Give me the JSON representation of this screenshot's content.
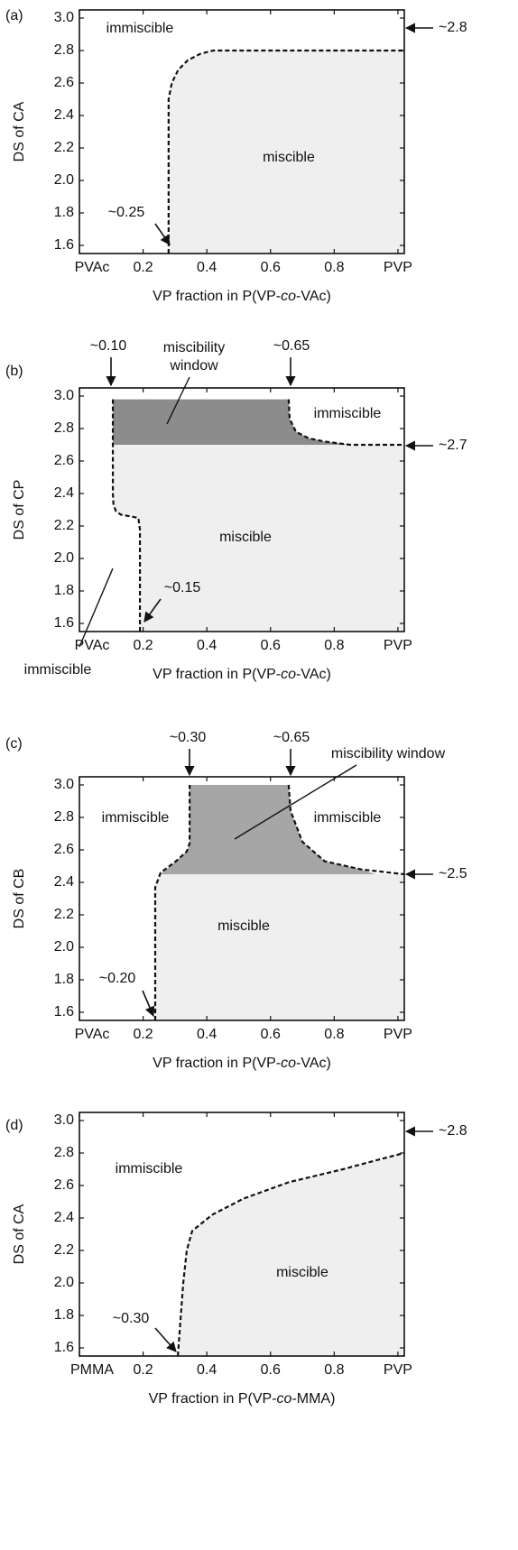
{
  "chart_data": [
    {
      "type": "area",
      "panel": "(a)",
      "ylabel": "DS of CA",
      "xlabel": [
        "VP fraction in P(VP-",
        "co",
        "-VAc)"
      ],
      "xlim": [
        0,
        1.02
      ],
      "ylim": [
        1.55,
        3.05
      ],
      "xticks": [
        {
          "value": 0,
          "label": "PVAc"
        },
        0.2,
        0.4,
        0.6,
        0.8,
        {
          "value": 1,
          "label": "PVP"
        }
      ],
      "yticks": [
        1.6,
        1.8,
        {
          "value": 2,
          "label": "2.0"
        },
        2.2,
        2.4,
        2.6,
        2.8,
        {
          "value": 3,
          "label": "3.0"
        }
      ],
      "regions": [
        {
          "color": "#efefef",
          "x": [
            0.28,
            0.28,
            0.29,
            0.31,
            0.34,
            0.38,
            0.42,
            1.02,
            1.02
          ],
          "y": [
            1.55,
            2.5,
            2.6,
            2.68,
            2.74,
            2.78,
            2.8,
            2.8,
            1.55
          ]
        }
      ],
      "boundaries": [
        {
          "x": [
            0.28,
            0.28,
            0.29,
            0.31,
            0.34,
            0.38,
            0.42,
            1.02
          ],
          "y": [
            1.55,
            2.5,
            2.6,
            2.68,
            2.74,
            2.78,
            2.8,
            2.8
          ]
        }
      ],
      "labels": [
        "immiscible",
        "miscible"
      ],
      "annotations": [
        "~0.25",
        "~2.8"
      ]
    },
    {
      "type": "area",
      "panel": "(b)",
      "ylabel": "DS of CP",
      "xlabel": [
        "VP fraction in P(VP-",
        "co",
        "-VAc)"
      ],
      "xlim": [
        0,
        1.02
      ],
      "ylim": [
        1.55,
        3.05
      ],
      "xticks": [
        {
          "value": 0,
          "label": "PVAc"
        },
        0.2,
        0.4,
        0.6,
        0.8,
        {
          "value": 1,
          "label": "PVP"
        }
      ],
      "yticks": [
        1.6,
        1.8,
        {
          "value": 2,
          "label": "2.0"
        },
        2.2,
        2.4,
        2.6,
        2.8,
        {
          "value": 3,
          "label": "3.0"
        }
      ],
      "regions": [
        {
          "color": "#efefef",
          "x": [
            0.105,
            0.105,
            0.107,
            0.115,
            0.13,
            0.185,
            0.19,
            0.19,
            1.02,
            1.02
          ],
          "y": [
            2.7,
            2.4,
            2.33,
            2.29,
            2.27,
            2.25,
            2.18,
            1.55,
            1.55,
            2.7
          ]
        },
        {
          "color": "#8c8c8c",
          "x": [
            0.105,
            0.105,
            0.657,
            0.66,
            0.68,
            0.72,
            0.77,
            0.85
          ],
          "y": [
            2.7,
            2.98,
            2.98,
            2.86,
            2.78,
            2.74,
            2.72,
            2.7
          ]
        }
      ],
      "boundaries": [
        {
          "x": [
            0.105,
            0.105,
            0.107,
            0.115,
            0.13,
            0.185,
            0.19,
            0.19
          ],
          "y": [
            2.98,
            2.4,
            2.33,
            2.29,
            2.27,
            2.25,
            2.18,
            1.55
          ]
        },
        {
          "x": [
            0.657,
            0.66,
            0.68,
            0.72,
            0.77,
            0.85,
            1.02
          ],
          "y": [
            2.98,
            2.86,
            2.78,
            2.74,
            2.72,
            2.7,
            2.7
          ]
        }
      ],
      "labels": [
        "miscibility",
        "window",
        "immiscible",
        "miscible",
        "immiscible"
      ],
      "annotations": [
        "~0.10",
        "~0.65",
        "~2.7",
        "~0.15"
      ]
    },
    {
      "type": "area",
      "panel": "(c)",
      "ylabel": "DS of CB",
      "xlabel": [
        "VP fraction in P(VP-",
        "co",
        "-VAc)"
      ],
      "xlim": [
        0,
        1.02
      ],
      "ylim": [
        1.55,
        3.05
      ],
      "xticks": [
        {
          "value": 0,
          "label": "PVAc"
        },
        0.2,
        0.4,
        0.6,
        0.8,
        {
          "value": 1,
          "label": "PVP"
        }
      ],
      "yticks": [
        1.6,
        1.8,
        {
          "value": 2,
          "label": "2.0"
        },
        2.2,
        2.4,
        2.6,
        2.8,
        {
          "value": 3,
          "label": "3.0"
        }
      ],
      "regions": [
        {
          "color": "#efefef",
          "x": [
            0.254,
            0.238,
            0.238,
            1.02,
            1.02
          ],
          "y": [
            2.45,
            2.37,
            1.55,
            1.55,
            2.45
          ]
        },
        {
          "color": "#a6a6a6",
          "x": [
            0.254,
            0.303,
            0.337,
            0.346,
            0.346,
            0.657,
            0.663,
            0.7,
            0.77,
            0.884,
            0.93
          ],
          "y": [
            2.45,
            2.53,
            2.59,
            2.64,
            3.0,
            3.0,
            2.84,
            2.65,
            2.53,
            2.48,
            2.45
          ]
        }
      ],
      "boundaries": [
        {
          "x": [
            0.238,
            0.238,
            0.255,
            0.303,
            0.337,
            0.346,
            0.346
          ],
          "y": [
            1.55,
            2.37,
            2.46,
            2.53,
            2.59,
            2.64,
            3.0
          ]
        },
        {
          "x": [
            0.657,
            0.663,
            0.7,
            0.77,
            0.884,
            1.02
          ],
          "y": [
            3.0,
            2.84,
            2.65,
            2.53,
            2.48,
            2.45
          ]
        }
      ],
      "labels": [
        "miscibility window",
        "immiscible",
        "immiscible",
        "miscible"
      ],
      "annotations": [
        "~0.30",
        "~0.65",
        "~2.5",
        "~0.20"
      ]
    },
    {
      "type": "area",
      "panel": "(d)",
      "ylabel": "DS of CA",
      "xlabel": [
        "VP fraction in P(VP-",
        "co",
        "-MMA)"
      ],
      "xlim": [
        0,
        1.02
      ],
      "ylim": [
        1.55,
        3.05
      ],
      "xticks": [
        {
          "value": 0,
          "label": "PMMA"
        },
        0.2,
        0.4,
        0.6,
        0.8,
        {
          "value": 1,
          "label": "PVP"
        }
      ],
      "yticks": [
        1.6,
        1.8,
        {
          "value": 2,
          "label": "2.0"
        },
        2.2,
        2.4,
        2.6,
        2.8,
        {
          "value": 3,
          "label": "3.0"
        }
      ],
      "regions": [
        {
          "color": "#efefef",
          "x": [
            0.309,
            0.326,
            0.337,
            0.354,
            0.417,
            0.516,
            0.657,
            0.827,
            0.941,
            1.02,
            1.02
          ],
          "y": [
            1.55,
            2.0,
            2.2,
            2.32,
            2.42,
            2.52,
            2.62,
            2.7,
            2.76,
            2.8,
            1.55
          ]
        }
      ],
      "boundaries": [
        {
          "x": [
            0.309,
            0.326,
            0.337,
            0.354,
            0.417,
            0.516,
            0.657,
            0.827,
            0.941,
            1.02
          ],
          "y": [
            1.55,
            2.0,
            2.2,
            2.32,
            2.42,
            2.52,
            2.62,
            2.7,
            2.76,
            2.8
          ]
        }
      ],
      "labels": [
        "immiscible",
        "miscible"
      ],
      "annotations": [
        "~2.8",
        "~0.30"
      ]
    }
  ]
}
